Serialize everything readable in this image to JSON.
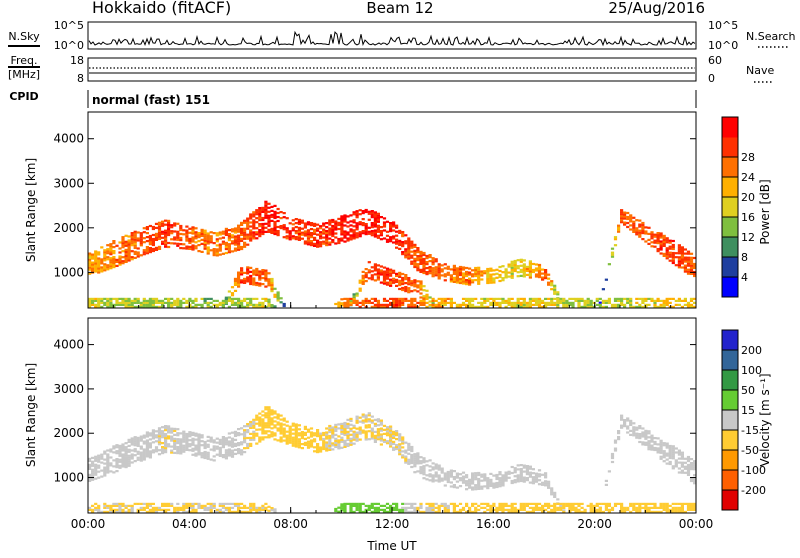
{
  "header": {
    "station": "Hokkaido (fitACF)",
    "beam": "Beam 12",
    "date": "25/Aug/2016"
  },
  "nsky_panel": {
    "left_label": "N.Sky",
    "left_ticks": [
      "10^5",
      "10^0"
    ],
    "right_ticks": [
      "10^5",
      "10^0"
    ],
    "right_label": "N.Search"
  },
  "freq_panel": {
    "left_label_1": "Freq.",
    "left_label_2": "[MHz]",
    "left_ticks": [
      "18",
      "8"
    ],
    "right_ticks": [
      "60",
      "0"
    ],
    "right_label": "Nave"
  },
  "cpid_panel": {
    "label": "CPID",
    "text": "normal (fast) 151"
  },
  "colors": {
    "power": [
      "#0000ff",
      "#1f3f9f",
      "#3f8f5f",
      "#7fbf3f",
      "#dfd020",
      "#ffb000",
      "#ff7000",
      "#ff3000",
      "#ff0000"
    ],
    "velocity": [
      "#e00000",
      "#ff6000",
      "#ff9900",
      "#ffcc33",
      "#c8c8c8",
      "#66cc33",
      "#339944",
      "#336699",
      "#2222cc"
    ]
  },
  "chart_data": [
    {
      "type": "heatmap",
      "title": "",
      "ylabel": "Slant Range [km]",
      "xlabel": "",
      "ylim": [
        200,
        4600
      ],
      "yticks": [
        "1000",
        "2000",
        "3000",
        "4000"
      ],
      "colorbar_label": "Power [dB]",
      "colorbar_ticks": [
        "4",
        "8",
        "12",
        "16",
        "20",
        "24",
        "28"
      ],
      "bands": [
        {
          "x": [
            "00:00",
            "01:00",
            "02:00",
            "03:00",
            "04:00",
            "05:00",
            "06:00",
            "07:00",
            "08:00",
            "09:00",
            "10:00",
            "11:00",
            "12:00",
            "13:00",
            "14:00",
            "15:00",
            "16:00",
            "17:00",
            "18:00",
            "19:00",
            "20:00",
            "21:00",
            "22:00",
            "23:00",
            "24:00"
          ],
          "center": [
            1200,
            1450,
            1700,
            1900,
            1800,
            1650,
            1850,
            2300,
            2000,
            1850,
            2000,
            2200,
            1900,
            1300,
            1050,
            950,
            950,
            1150,
            1000,
            0,
            0,
            2300,
            1900,
            1500,
            1100
          ],
          "halfwidth": [
            250,
            300,
            300,
            300,
            250,
            250,
            300,
            350,
            250,
            250,
            300,
            300,
            250,
            250,
            200,
            200,
            150,
            200,
            150,
            0,
            0,
            150,
            200,
            250,
            250
          ],
          "power": [
            20,
            22,
            24,
            26,
            24,
            22,
            24,
            28,
            26,
            26,
            28,
            28,
            28,
            24,
            24,
            22,
            18,
            16,
            24,
            0,
            0,
            24,
            24,
            26,
            24
          ]
        },
        {
          "x": [
            "00:00",
            "01:00",
            "02:00",
            "03:00",
            "04:00",
            "05:00",
            "06:00",
            "07:00",
            "08:00",
            "09:00",
            "10:00",
            "11:00",
            "12:00",
            "13:00",
            "14:00",
            "15:00",
            "16:00",
            "17:00",
            "18:00",
            "19:00",
            "20:00",
            "21:00",
            "22:00",
            "23:00",
            "24:00"
          ],
          "center": [
            0,
            0,
            0,
            0,
            0,
            0,
            1000,
            900,
            0,
            0,
            0,
            1100,
            900,
            700,
            0,
            0,
            0,
            0,
            0,
            0,
            0,
            0,
            0,
            0,
            0
          ],
          "halfwidth": [
            0,
            0,
            0,
            0,
            0,
            0,
            200,
            200,
            0,
            0,
            0,
            200,
            200,
            200,
            0,
            0,
            0,
            0,
            0,
            0,
            0,
            0,
            0,
            0,
            0
          ],
          "power": [
            0,
            0,
            0,
            0,
            0,
            0,
            26,
            24,
            0,
            0,
            0,
            26,
            26,
            24,
            0,
            0,
            0,
            0,
            0,
            0,
            0,
            0,
            0,
            0,
            0
          ]
        },
        {
          "x": [
            "00:00",
            "01:00",
            "02:00",
            "03:00",
            "04:00",
            "05:00",
            "06:00",
            "07:00",
            "08:00",
            "09:00",
            "10:00",
            "11:00",
            "12:00",
            "13:00",
            "14:00",
            "15:00",
            "16:00",
            "17:00",
            "18:00",
            "19:00",
            "20:00",
            "21:00",
            "22:00",
            "23:00",
            "24:00"
          ],
          "center": [
            350,
            350,
            350,
            350,
            350,
            350,
            350,
            350,
            0,
            0,
            350,
            350,
            350,
            350,
            350,
            350,
            350,
            350,
            350,
            350,
            350,
            350,
            350,
            350,
            350
          ],
          "halfwidth": [
            100,
            100,
            100,
            100,
            100,
            100,
            100,
            100,
            0,
            0,
            100,
            100,
            100,
            100,
            100,
            100,
            100,
            100,
            100,
            100,
            100,
            100,
            100,
            100,
            100
          ],
          "power": [
            16,
            14,
            14,
            14,
            14,
            12,
            14,
            16,
            0,
            0,
            22,
            24,
            26,
            22,
            20,
            16,
            16,
            16,
            16,
            14,
            14,
            14,
            16,
            18,
            18
          ]
        }
      ]
    },
    {
      "type": "heatmap",
      "title": "",
      "ylabel": "Slant Range [km]",
      "xlabel": "Time UT",
      "ylim": [
        200,
        4600
      ],
      "yticks": [
        "1000",
        "2000",
        "3000",
        "4000"
      ],
      "xticks": [
        "00:00",
        "04:00",
        "08:00",
        "12:00",
        "16:00",
        "20:00",
        "00:00"
      ],
      "colorbar_label": "Velocity [m s⁻¹]",
      "colorbar_ticks": [
        "-200",
        "-100",
        "-50",
        "-15",
        "15",
        "50",
        "100",
        "200"
      ],
      "bands": [
        {
          "x": [
            "00:00",
            "01:00",
            "02:00",
            "03:00",
            "04:00",
            "05:00",
            "06:00",
            "07:00",
            "08:00",
            "09:00",
            "10:00",
            "11:00",
            "12:00",
            "13:00",
            "14:00",
            "15:00",
            "16:00",
            "17:00",
            "18:00",
            "19:00",
            "20:00",
            "21:00",
            "22:00",
            "23:00",
            "24:00"
          ],
          "center": [
            1200,
            1450,
            1700,
            1900,
            1800,
            1650,
            1850,
            2300,
            2000,
            1850,
            2000,
            2200,
            1900,
            1300,
            1050,
            950,
            950,
            1150,
            1000,
            0,
            0,
            2300,
            1900,
            1500,
            1100
          ],
          "halfwidth": [
            250,
            300,
            300,
            300,
            250,
            250,
            300,
            350,
            250,
            250,
            300,
            300,
            250,
            250,
            200,
            200,
            150,
            200,
            150,
            0,
            0,
            150,
            200,
            250,
            250
          ],
          "velocity": [
            -5,
            0,
            5,
            -10,
            0,
            5,
            -5,
            -40,
            -30,
            -25,
            -10,
            -20,
            -15,
            0,
            0,
            5,
            0,
            0,
            0,
            0,
            0,
            0,
            5,
            0,
            -5
          ]
        },
        {
          "x": [
            "00:00",
            "01:00",
            "02:00",
            "03:00",
            "04:00",
            "05:00",
            "06:00",
            "07:00",
            "08:00",
            "09:00",
            "10:00",
            "11:00",
            "12:00",
            "13:00",
            "14:00",
            "15:00",
            "16:00",
            "17:00",
            "18:00",
            "19:00",
            "20:00",
            "21:00",
            "22:00",
            "23:00",
            "24:00"
          ],
          "center": [
            350,
            350,
            350,
            350,
            350,
            350,
            350,
            350,
            0,
            0,
            350,
            350,
            350,
            350,
            350,
            350,
            350,
            350,
            350,
            350,
            350,
            350,
            350,
            350,
            350
          ],
          "halfwidth": [
            100,
            100,
            100,
            100,
            100,
            100,
            100,
            100,
            0,
            0,
            100,
            100,
            100,
            100,
            100,
            100,
            100,
            100,
            100,
            100,
            100,
            100,
            100,
            100,
            100
          ],
          "velocity": [
            -20,
            -15,
            -20,
            -20,
            -20,
            -15,
            -20,
            -20,
            0,
            0,
            30,
            35,
            30,
            -15,
            -20,
            -30,
            -40,
            -35,
            -30,
            -30,
            -35,
            -40,
            -35,
            -30,
            -30
          ]
        }
      ]
    }
  ]
}
